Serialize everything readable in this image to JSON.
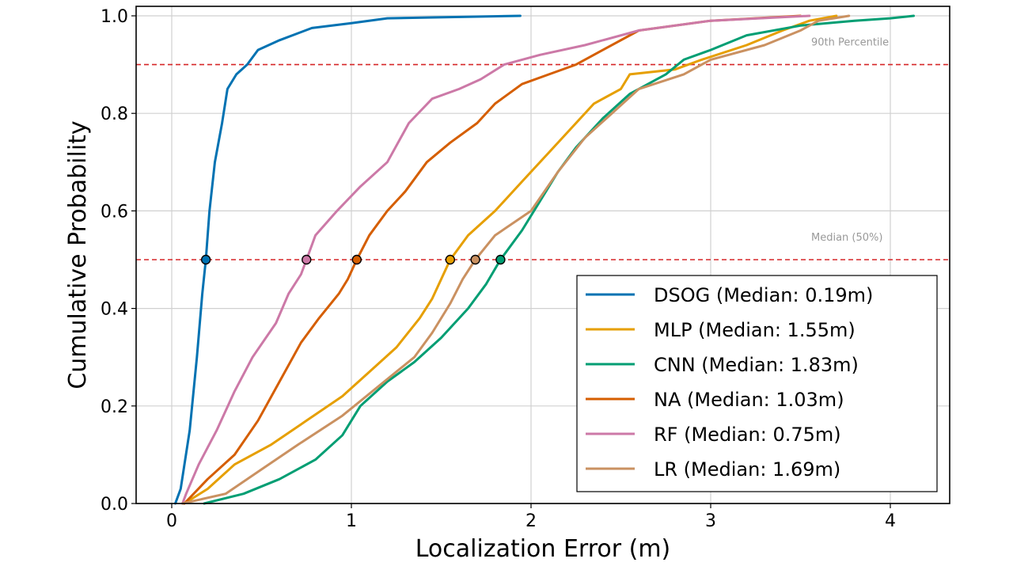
{
  "chart_data": {
    "type": "line",
    "title": "",
    "xlabel": "Localization Error (m)",
    "ylabel": "Cumulative Probability",
    "xlim": [
      -0.2,
      4.35
    ],
    "ylim": [
      0.0,
      1.02
    ],
    "xticks": [
      0,
      1,
      2,
      3,
      4
    ],
    "xtick_labels": [
      "0",
      "1",
      "2",
      "3",
      "4"
    ],
    "yticks": [
      0.0,
      0.2,
      0.4,
      0.6,
      0.8,
      1.0
    ],
    "ytick_labels": [
      "0.0",
      "0.2",
      "0.4",
      "0.6",
      "0.8",
      "1.0"
    ],
    "grid": true,
    "legend_position": "lower-right",
    "reference_lines": [
      {
        "y": 0.9,
        "label": "90th Percentile",
        "color": "#d62728",
        "style": "dashed"
      },
      {
        "y": 0.5,
        "label": "Median (50%)",
        "color": "#d62728",
        "style": "dashed"
      }
    ],
    "series": [
      {
        "name": "DSOG",
        "label": "DSOG (Median: 0.19m)",
        "median": 0.19,
        "color": "#0072B2",
        "x": [
          0.02,
          0.05,
          0.1,
          0.14,
          0.17,
          0.19,
          0.21,
          0.24,
          0.28,
          0.31,
          0.36,
          0.42,
          0.48,
          0.6,
          0.78,
          1.0,
          1.2,
          1.94
        ],
        "y": [
          0.0,
          0.03,
          0.15,
          0.3,
          0.43,
          0.5,
          0.6,
          0.7,
          0.78,
          0.85,
          0.88,
          0.9,
          0.93,
          0.95,
          0.975,
          0.985,
          0.995,
          1.0
        ]
      },
      {
        "name": "MLP",
        "label": "MLP (Median: 1.55m)",
        "median": 1.55,
        "color": "#E69F00",
        "x": [
          0.07,
          0.2,
          0.35,
          0.55,
          0.75,
          0.95,
          1.1,
          1.25,
          1.38,
          1.45,
          1.5,
          1.55,
          1.65,
          1.8,
          1.95,
          2.1,
          2.25,
          2.35,
          2.5,
          2.55,
          2.8,
          2.95,
          3.2,
          3.4,
          3.55,
          3.7
        ],
        "y": [
          0.0,
          0.03,
          0.08,
          0.12,
          0.17,
          0.22,
          0.27,
          0.32,
          0.38,
          0.42,
          0.46,
          0.5,
          0.55,
          0.6,
          0.66,
          0.72,
          0.78,
          0.82,
          0.85,
          0.88,
          0.89,
          0.91,
          0.94,
          0.97,
          0.99,
          1.0
        ]
      },
      {
        "name": "CNN",
        "label": "CNN (Median: 1.83m)",
        "median": 1.83,
        "color": "#009E73",
        "x": [
          0.18,
          0.4,
          0.6,
          0.8,
          0.95,
          1.05,
          1.2,
          1.35,
          1.5,
          1.65,
          1.75,
          1.83,
          1.95,
          2.05,
          2.15,
          2.25,
          2.4,
          2.55,
          2.75,
          2.85,
          3.0,
          3.2,
          3.5,
          3.8,
          4.0,
          4.13
        ],
        "y": [
          0.0,
          0.02,
          0.05,
          0.09,
          0.14,
          0.2,
          0.25,
          0.29,
          0.34,
          0.4,
          0.45,
          0.5,
          0.56,
          0.62,
          0.68,
          0.73,
          0.79,
          0.84,
          0.88,
          0.91,
          0.93,
          0.96,
          0.98,
          0.99,
          0.995,
          1.0
        ]
      },
      {
        "name": "NA",
        "label": "NA (Median: 1.03m)",
        "median": 1.03,
        "color": "#D55E00",
        "x": [
          0.07,
          0.2,
          0.35,
          0.48,
          0.6,
          0.72,
          0.82,
          0.93,
          0.98,
          1.03,
          1.1,
          1.2,
          1.3,
          1.42,
          1.55,
          1.7,
          1.8,
          1.95,
          2.1,
          2.25,
          2.4,
          2.6,
          3.0,
          3.5
        ],
        "y": [
          0.0,
          0.05,
          0.1,
          0.17,
          0.25,
          0.33,
          0.38,
          0.43,
          0.46,
          0.5,
          0.55,
          0.6,
          0.64,
          0.7,
          0.74,
          0.78,
          0.82,
          0.86,
          0.88,
          0.9,
          0.93,
          0.97,
          0.99,
          1.0
        ]
      },
      {
        "name": "RF",
        "label": "RF (Median: 0.75m)",
        "median": 0.75,
        "color": "#CC79A7",
        "x": [
          0.06,
          0.08,
          0.15,
          0.25,
          0.35,
          0.45,
          0.58,
          0.65,
          0.72,
          0.75,
          0.8,
          0.92,
          1.05,
          1.2,
          1.32,
          1.45,
          1.6,
          1.72,
          1.85,
          2.05,
          2.3,
          2.6,
          3.0,
          3.55
        ],
        "y": [
          0.0,
          0.02,
          0.08,
          0.15,
          0.23,
          0.3,
          0.37,
          0.43,
          0.47,
          0.5,
          0.55,
          0.6,
          0.65,
          0.7,
          0.78,
          0.83,
          0.85,
          0.87,
          0.9,
          0.92,
          0.94,
          0.97,
          0.99,
          1.0
        ]
      },
      {
        "name": "LR",
        "label": "LR (Median: 1.69m)",
        "median": 1.69,
        "color": "#CA9161",
        "x": [
          0.06,
          0.3,
          0.5,
          0.7,
          0.95,
          1.15,
          1.35,
          1.45,
          1.55,
          1.62,
          1.69,
          1.8,
          2.0,
          2.15,
          2.3,
          2.45,
          2.6,
          2.85,
          3.0,
          3.3,
          3.5,
          3.6,
          3.77
        ],
        "y": [
          0.0,
          0.02,
          0.07,
          0.12,
          0.18,
          0.24,
          0.3,
          0.35,
          0.41,
          0.46,
          0.5,
          0.55,
          0.6,
          0.68,
          0.75,
          0.8,
          0.85,
          0.88,
          0.91,
          0.94,
          0.97,
          0.99,
          1.0
        ]
      }
    ]
  }
}
